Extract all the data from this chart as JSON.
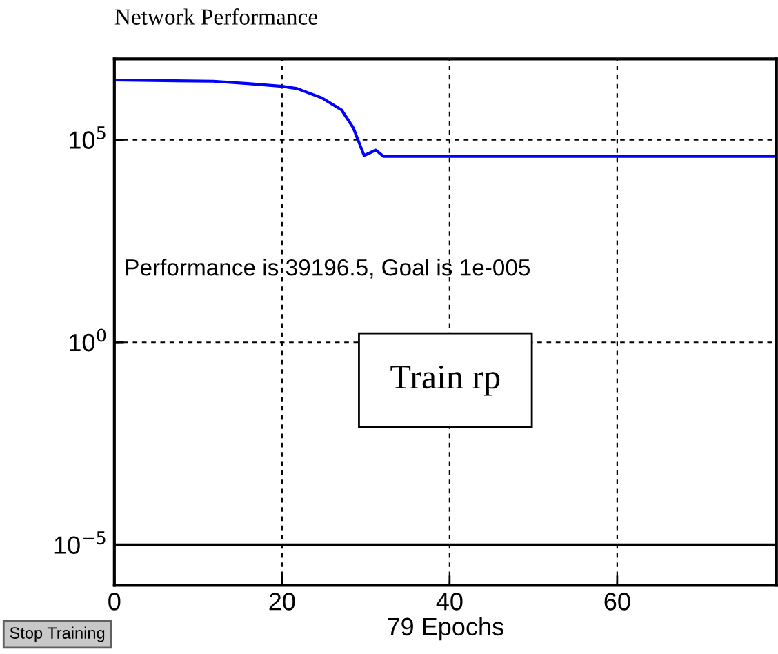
{
  "chart_data": {
    "type": "line",
    "title": "Network Performance",
    "xlabel": "79 Epochs",
    "annotations": [
      "Performance is 39196.5, Goal is 1e-005",
      "Train rp",
      "Stop Training"
    ],
    "series": [
      {
        "color": "#0000ff",
        "x": [
          0,
          11.8,
          15.9,
          20,
          21.8,
          24.7,
          27.1,
          28.5,
          29.8,
          31.2,
          32.1,
          79
        ],
        "values": [
          3000000,
          2800000,
          2450000,
          2100000,
          1850000,
          1100000,
          550000,
          200000,
          41000,
          56000,
          39196.5,
          39196.5
        ]
      }
    ],
    "log": "y",
    "xlim": [
      0,
      79
    ],
    "xticks": [
      0,
      20,
      40,
      60
    ],
    "ylim": [
      1e-06,
      10000000
    ],
    "yticks": [
      {
        "value": 1e-05,
        "label": "10$^{−5}$"
      },
      {
        "value": 1,
        "label": "10$^{0}$"
      },
      {
        "value": 100000,
        "label": "10$^{5}$"
      }
    ],
    "ref_lines": [
      {
        "axis": "y",
        "value": 1e-05,
        "color": "#000000",
        "line_style": "solid"
      }
    ],
    "grid": true,
    "line_style": "solid",
    "marker": "none"
  }
}
